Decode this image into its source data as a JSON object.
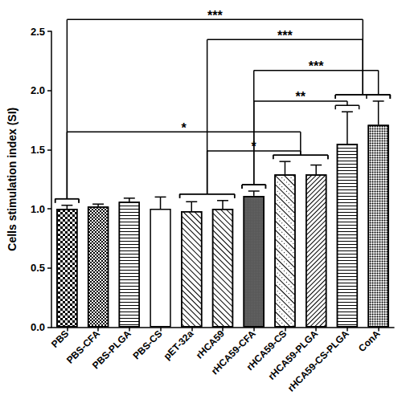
{
  "chart_data": {
    "type": "bar",
    "ylabel": "Cells stimulation index (SI)",
    "categories": [
      "PBS",
      "PBS-CFA",
      "PBS-PLGA",
      "PBS-CS",
      "pET-32a",
      "rHCA59",
      "rHCA59-CFA",
      "rHCA59-CS",
      "rHCA59-PLGA",
      "rHCA59-CS-PLGA",
      "ConA"
    ],
    "values": [
      1.0,
      1.02,
      1.06,
      1.0,
      0.98,
      1.0,
      1.11,
      1.29,
      1.29,
      1.55,
      1.71
    ],
    "errors": [
      0.03,
      0.02,
      0.03,
      0.1,
      0.08,
      0.07,
      0.04,
      0.11,
      0.08,
      0.27,
      0.2
    ],
    "color": "#ffffff",
    "ylim": [
      0,
      2.5
    ],
    "yticks": [
      {
        "value": 0,
        "label": "0.0"
      },
      0.5,
      {
        "value": 1,
        "label": "1.0"
      },
      1.5,
      {
        "value": 2,
        "label": "2.0"
      },
      2.5
    ],
    "grid": false,
    "annotations": [
      {
        "text": "***",
        "groups": [
          [
            "PBS"
          ],
          [
            "rHCA59-CS-PLGA",
            "ConA"
          ]
        ],
        "y": 2.6
      },
      {
        "text": "***",
        "groups": [
          [
            "pET-32a",
            "rHCA59"
          ],
          [
            "rHCA59-CS-PLGA",
            "ConA"
          ]
        ],
        "y": 2.43
      },
      {
        "text": "***",
        "groups": [
          [
            "rHCA59-CFA"
          ],
          [
            "ConA"
          ]
        ],
        "y": 2.17
      },
      {
        "text": "**",
        "groups": [
          [
            "rHCA59-CFA"
          ],
          [
            "rHCA59-CS-PLGA"
          ]
        ],
        "y": 1.91
      },
      {
        "text": "*",
        "groups": [
          [
            "PBS"
          ],
          [
            "rHCA59-CS",
            "rHCA59-PLGA"
          ]
        ],
        "y": 1.65
      },
      {
        "text": "*",
        "groups": [
          [
            "pET-32a",
            "rHCA59"
          ],
          [
            "rHCA59-CS",
            "rHCA59-PLGA"
          ]
        ],
        "y": 1.49
      }
    ]
  }
}
